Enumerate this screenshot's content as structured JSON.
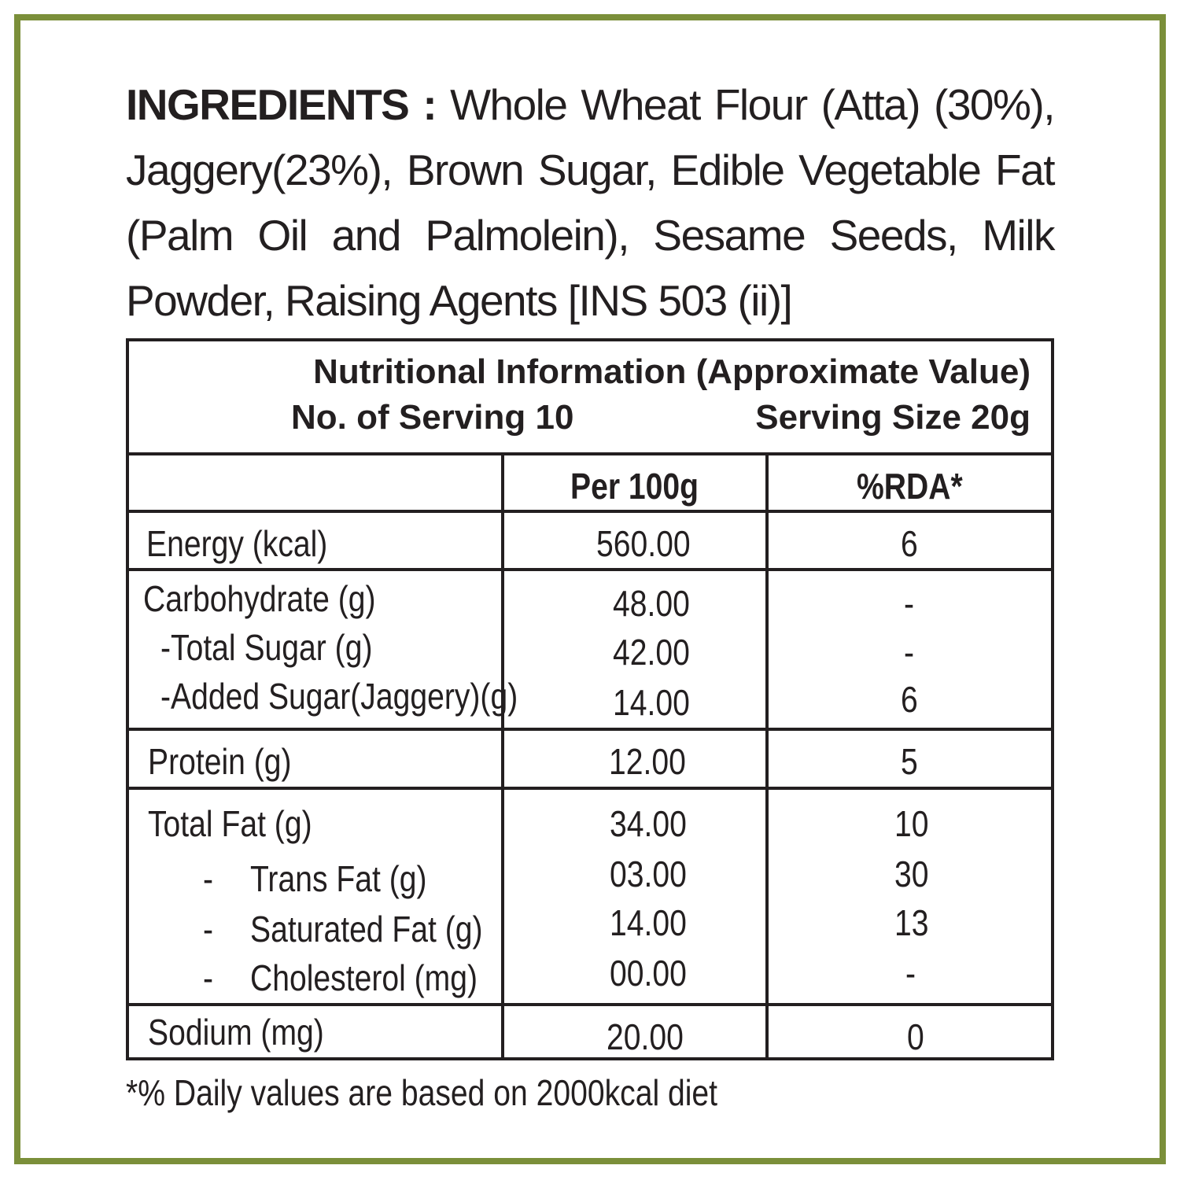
{
  "colors": {
    "frame": "#7b8f3a",
    "text": "#231f20"
  },
  "ingredients": {
    "label": "INGREDIENTS :",
    "text": " Whole Wheat Flour (Atta) (30%), Jaggery(23%), Brown Sugar, Edible Vegetable Fat (Palm Oil and Palmolein), Sesame Seeds, Milk Powder, Raising Agents [INS 503 (ii)]"
  },
  "table": {
    "title": "Nutritional Information (Approximate Value)",
    "servings": "No. of Serving 10",
    "serving_size": "Serving Size 20g",
    "col_per100": "Per 100g",
    "col_rda": "%RDA*",
    "rows": [
      {
        "name": "Energy (kcal)",
        "value": "560.00",
        "rda": "6"
      },
      {
        "name": "Carbohydrate (g)",
        "value": "48.00",
        "rda": "-"
      },
      {
        "name": "-Total Sugar (g)",
        "value": "42.00",
        "rda": "-"
      },
      {
        "name": "-Added Sugar(Jaggery)(g)",
        "value": "14.00",
        "rda": "6"
      },
      {
        "name": "Protein (g)",
        "value": "12.00",
        "rda": "5"
      },
      {
        "name": "Total Fat (g)",
        "value": "34.00",
        "rda": "10"
      },
      {
        "name": "-",
        "sub": "Trans Fat (g)",
        "value": "03.00",
        "rda": "30"
      },
      {
        "name": "-",
        "sub": "Saturated Fat (g)",
        "value": "14.00",
        "rda": "13"
      },
      {
        "name": "-",
        "sub": "Cholesterol (mg)",
        "value": "00.00",
        "rda": "-"
      },
      {
        "name": "Sodium (mg)",
        "value": "20.00",
        "rda": "0"
      }
    ]
  },
  "footnote": "*% Daily values are based on 2000kcal diet"
}
